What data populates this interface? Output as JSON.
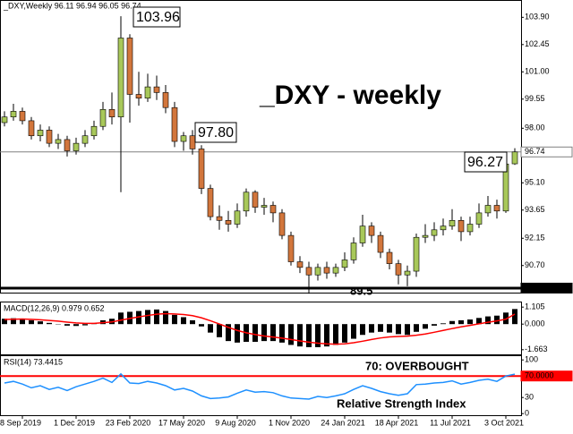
{
  "chart_data": [
    {
      "type": "candlestick",
      "header": "_DXY,Weekly  96.11 96.94 96.05 96.74",
      "title": "_DXY - weekly",
      "up_color": "#a8c85a",
      "down_color": "#d2763c",
      "ylim": [
        89.26,
        104.82
      ],
      "yticks": [
        {
          "value": 103.9,
          "label": "103.90"
        },
        102.45,
        {
          "value": 101,
          "label": "101.00"
        },
        99.55,
        {
          "value": 98,
          "label": "98.00"
        },
        {
          "value": 95.1,
          "label": "95.10"
        },
        93.65,
        92.15,
        {
          "value": 90.7,
          "label": "90.70"
        }
      ],
      "levels": [
        {
          "value": 96.74,
          "label": "96.74",
          "color": "#808080"
        },
        {
          "value": 89.5,
          "label": "89.50",
          "color": "#000000"
        }
      ],
      "annotations": [
        {
          "text": "103.96"
        },
        {
          "text": "97.80"
        },
        {
          "text": "96.27"
        },
        {
          "text": "89.5"
        }
      ],
      "open": [
        98.3,
        98.6,
        98.9,
        98.4,
        97.6,
        97.9,
        97.2,
        97.4,
        96.8,
        97.2,
        97.6,
        98.1,
        99.0,
        98.6,
        102.8,
        99.8,
        99.6,
        100.2,
        99.9,
        99.1,
        97.3,
        97.6,
        96.9,
        94.8,
        93.3,
        93.1,
        92.9,
        93.6,
        94.6,
        93.8,
        93.9,
        93.5,
        92.3,
        90.9,
        90.6,
        90.2,
        90.6,
        90.3,
        90.6,
        91.0,
        91.9,
        92.8,
        92.3,
        91.4,
        90.8,
        90.2,
        90.4,
        92.2,
        92.3,
        92.6,
        92.8,
        93.1,
        92.5,
        92.9,
        93.5,
        93.9,
        93.6,
        96.11
      ],
      "high": [
        98.9,
        99.3,
        99.1,
        98.6,
        98.2,
        98.1,
        97.7,
        97.6,
        97.5,
        97.9,
        98.4,
        99.4,
        99.9,
        103.96,
        103.0,
        101.0,
        100.9,
        100.8,
        100.3,
        99.4,
        97.8,
        97.9,
        97.1,
        95.0,
        93.9,
        93.6,
        94.0,
        94.8,
        94.7,
        94.3,
        94.1,
        93.7,
        92.5,
        91.2,
        90.9,
        90.8,
        90.9,
        90.8,
        91.4,
        92.2,
        93.4,
        93.0,
        92.5,
        91.6,
        91.0,
        90.7,
        92.4,
        92.9,
        93.0,
        93.2,
        93.7,
        93.3,
        93.3,
        94.0,
        94.4,
        94.2,
        96.27,
        96.94
      ],
      "low": [
        98.1,
        98.4,
        98.2,
        97.4,
        97.3,
        97.0,
        96.9,
        96.5,
        96.6,
        97.0,
        97.4,
        97.9,
        98.2,
        94.6,
        98.3,
        99.2,
        99.4,
        99.5,
        98.8,
        97.0,
        96.8,
        96.6,
        94.5,
        93.1,
        92.6,
        92.5,
        92.7,
        93.3,
        93.5,
        93.4,
        93.0,
        92.1,
        90.7,
        90.3,
        89.2,
        89.9,
        90.0,
        90.1,
        90.4,
        90.8,
        91.7,
        91.9,
        91.1,
        90.5,
        89.7,
        89.6,
        90.1,
        91.9,
        92.0,
        92.3,
        92.6,
        92.0,
        92.3,
        92.7,
        93.3,
        93.2,
        93.5,
        96.05
      ],
      "close": [
        98.6,
        98.9,
        98.4,
        97.6,
        97.9,
        97.2,
        97.4,
        96.8,
        97.2,
        97.6,
        98.1,
        99.0,
        98.6,
        102.8,
        99.8,
        99.6,
        100.2,
        99.9,
        99.1,
        97.3,
        97.6,
        96.9,
        94.8,
        93.3,
        93.1,
        92.9,
        93.6,
        94.6,
        93.8,
        93.9,
        93.5,
        92.3,
        90.9,
        90.6,
        90.2,
        90.6,
        90.3,
        90.6,
        91.0,
        91.9,
        92.8,
        92.3,
        91.4,
        90.8,
        90.2,
        90.4,
        92.2,
        92.3,
        92.6,
        92.8,
        93.1,
        92.5,
        92.9,
        93.5,
        93.9,
        93.6,
        96.1,
        96.74
      ]
    },
    {
      "type": "macd",
      "label": "MACD(12,26,9) 0.979 0.652",
      "ylim": [
        -1.964,
        1.406
      ],
      "yticks": [
        1.105,
        {
          "value": 0,
          "label": "0.000"
        },
        -1.663
      ],
      "series": [
        {
          "color": "#000000",
          "values": [
            0.35,
            0.38,
            0.36,
            0.25,
            0.18,
            0.08,
            -0.02,
            -0.1,
            -0.12,
            -0.08,
            0.05,
            0.25,
            0.35,
            0.75,
            0.8,
            0.85,
            0.92,
            0.95,
            0.85,
            0.6,
            0.45,
            0.25,
            -0.15,
            -0.55,
            -0.85,
            -1.1,
            -1.2,
            -1.15,
            -1.15,
            -1.1,
            -1.1,
            -1.2,
            -1.35,
            -1.45,
            -1.5,
            -1.5,
            -1.45,
            -1.35,
            -1.2,
            -0.95,
            -0.7,
            -0.55,
            -0.5,
            -0.55,
            -0.65,
            -0.7,
            -0.5,
            -0.3,
            -0.1,
            0.05,
            0.2,
            0.25,
            0.3,
            0.4,
            0.5,
            0.55,
            0.75,
            0.979
          ]
        },
        {
          "color": "#ff0000",
          "values": [
            0.3,
            0.32,
            0.33,
            0.31,
            0.28,
            0.24,
            0.19,
            0.13,
            0.08,
            0.05,
            0.05,
            0.09,
            0.14,
            0.26,
            0.37,
            0.47,
            0.56,
            0.64,
            0.68,
            0.66,
            0.62,
            0.55,
            0.41,
            0.22,
            0.01,
            -0.21,
            -0.41,
            -0.56,
            -0.68,
            -0.77,
            -0.84,
            -0.91,
            -1.0,
            -1.09,
            -1.17,
            -1.24,
            -1.28,
            -1.3,
            -1.28,
            -1.21,
            -1.11,
            -1.0,
            -0.9,
            -0.83,
            -0.8,
            -0.78,
            -0.72,
            -0.64,
            -0.53,
            -0.41,
            -0.29,
            -0.18,
            -0.08,
            0.02,
            0.12,
            0.21,
            0.32,
            0.652
          ]
        }
      ]
    },
    {
      "type": "line",
      "label": "RSI(14) 73.4415",
      "color": "#1e90ff",
      "ylim": [
        -3,
        107
      ],
      "yticks": [
        100,
        30,
        0
      ],
      "levels": [
        {
          "value": 70,
          "label": "70.0000",
          "color": "#ff0000"
        }
      ],
      "annotations": [
        {
          "text": "70: OVERBOUGHT",
          "color": "#ff0000"
        },
        {
          "text": "Relative Strength Index",
          "color": "#1e90ff"
        }
      ],
      "categories": [
        null,
        null,
        "8 Sep 2019",
        null,
        null,
        null,
        null,
        null,
        "1 Dec 2019",
        null,
        null,
        null,
        null,
        null,
        "23 Feb 2020",
        null,
        null,
        null,
        null,
        null,
        "17 May 2020",
        null,
        null,
        null,
        null,
        null,
        "9 Aug 2020",
        null,
        null,
        null,
        null,
        null,
        "1 Nov 2020",
        null,
        null,
        null,
        null,
        null,
        "24 Jan 2021",
        null,
        null,
        null,
        null,
        null,
        "18 Apr 2021",
        null,
        null,
        null,
        null,
        null,
        "11 Jul 2021",
        null,
        null,
        null,
        null,
        null,
        "3 Oct 2021",
        null
      ],
      "values": [
        57,
        60,
        55,
        48,
        52,
        45,
        49,
        43,
        50,
        55,
        60,
        66,
        58,
        74,
        57,
        56,
        60,
        57,
        52,
        44,
        47,
        42,
        33,
        28,
        29,
        31,
        38,
        44,
        40,
        41,
        39,
        33,
        29,
        28,
        27,
        32,
        30,
        33,
        37,
        45,
        52,
        47,
        41,
        37,
        34,
        37,
        54,
        55,
        57,
        58,
        61,
        55,
        58,
        62,
        64,
        60,
        70,
        73.4415
      ]
    }
  ]
}
